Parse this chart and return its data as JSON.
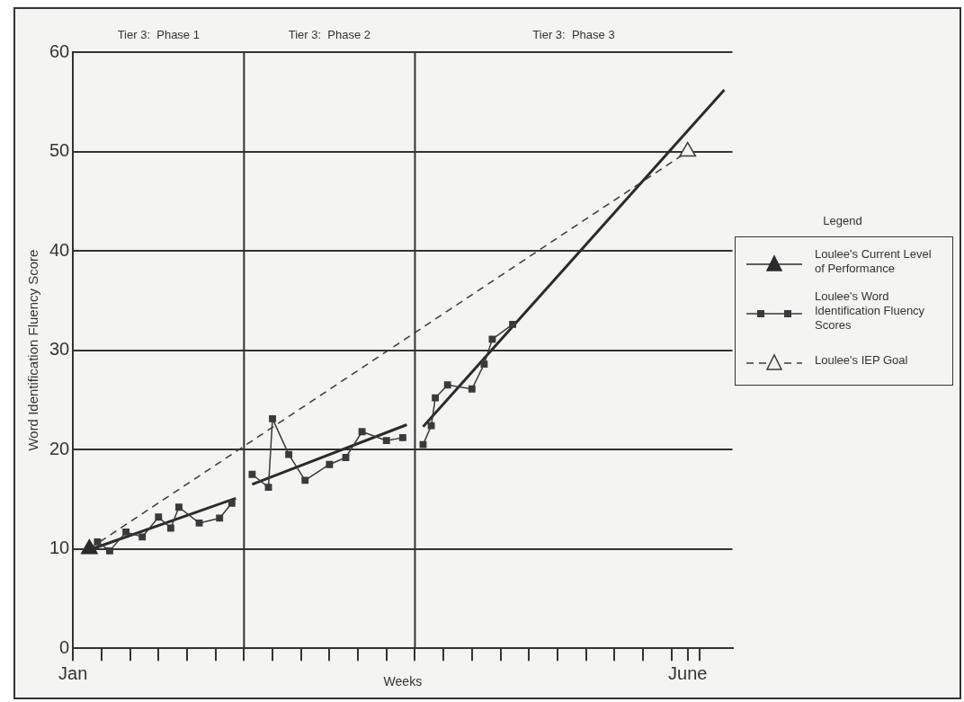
{
  "chart_data": {
    "type": "line",
    "xlabel": "Weeks",
    "ylabel": "Word Identification Fluency Score",
    "legend_title": "Legend",
    "legend": "right",
    "grid": "y",
    "xlim": [
      "--01-01",
      "--06-12"
    ],
    "xticks": [
      {
        "value": "--01-01",
        "label": "Jan"
      },
      {
        "value": "--01-08",
        "label": null
      },
      {
        "value": "--01-15",
        "label": null
      },
      {
        "value": "--01-22",
        "label": null
      },
      {
        "value": "--01-29",
        "label": null
      },
      {
        "value": "--02-05",
        "label": null
      },
      {
        "value": "--02-12",
        "label": null
      },
      {
        "value": "--02-19",
        "label": null
      },
      {
        "value": "--02-26",
        "label": null
      },
      {
        "value": "--03-05",
        "label": null
      },
      {
        "value": "--03-12",
        "label": null
      },
      {
        "value": "--03-19",
        "label": null
      },
      {
        "value": "--03-26",
        "label": null
      },
      {
        "value": "--04-02",
        "label": null
      },
      {
        "value": "--04-09",
        "label": null
      },
      {
        "value": "--04-16",
        "label": null
      },
      {
        "value": "--04-23",
        "label": null
      },
      {
        "value": "--04-30",
        "label": null
      },
      {
        "value": "--05-07",
        "label": null
      },
      {
        "value": "--05-14",
        "label": null
      },
      {
        "value": "--05-21",
        "label": null
      },
      {
        "value": "--05-28",
        "label": null
      },
      {
        "value": "--06-01",
        "label": "June"
      },
      {
        "value": "--06-04",
        "label": null
      }
    ],
    "ylim": [
      0,
      60
    ],
    "yticks": [
      0,
      10,
      20,
      30,
      40,
      50,
      60
    ],
    "ref_lines": [
      {
        "axis": "x",
        "value": "--02-12"
      },
      {
        "axis": "x",
        "value": "--03-26"
      }
    ],
    "annotations": [
      "Tier 3:  Phase 1",
      "Tier 3:  Phase 2",
      "Tier 3:  Phase 3"
    ],
    "series": [
      {
        "name": "Loulee's Current Level of Performance",
        "type": "scatter",
        "marker": "triangle",
        "color": "#2b2b2b",
        "x": [
          "--01-05"
        ],
        "values": [
          10
        ]
      },
      {
        "name": "Loulee's Word Identification Fluency Scores",
        "marker": "square",
        "color": "#3a3a3a",
        "x": [
          "--01-07",
          "--01-10",
          "--01-14",
          "--01-18",
          "--01-22",
          "--01-25",
          "--01-27",
          "--02-01",
          "--02-06",
          "--02-09",
          "--02-12",
          "--02-14",
          "--02-18",
          "--02-19",
          "--02-23",
          "--02-27",
          "--03-05",
          "--03-09",
          "--03-13",
          "--03-19",
          "--03-23",
          "--03-26",
          "--03-28",
          "--03-30",
          "--03-31",
          "--04-03",
          "--04-09",
          "--04-12",
          "--04-14",
          "--04-19"
        ],
        "values": [
          10.7,
          9.8,
          11.7,
          11.2,
          13.2,
          12.1,
          14.2,
          12.6,
          13.1,
          14.6,
          null,
          17.5,
          16.2,
          23.1,
          19.5,
          16.9,
          18.5,
          19.2,
          21.8,
          20.9,
          21.2,
          null,
          20.5,
          22.4,
          25.2,
          26.5,
          26.1,
          28.6,
          31.1,
          32.6
        ]
      },
      {
        "name": "Loulee's IEP Goal",
        "marker": "triangle",
        "line_style": "dashed",
        "color": "#3a3a3a",
        "x": [
          "--01-05",
          "--06-01"
        ],
        "values": [
          10,
          50
        ]
      },
      {
        "marker": "none",
        "color": "#2b2b2b",
        "x": [
          "--01-05",
          "--02-10"
        ],
        "values": [
          9.9,
          15.1
        ]
      },
      {
        "marker": "none",
        "color": "#2b2b2b",
        "x": [
          "--02-14",
          "--03-24"
        ],
        "values": [
          16.5,
          22.5
        ]
      },
      {
        "marker": "none",
        "color": "#2b2b2b",
        "x": [
          "--03-28",
          "--06-10"
        ],
        "values": [
          22.3,
          56.2
        ]
      }
    ]
  }
}
